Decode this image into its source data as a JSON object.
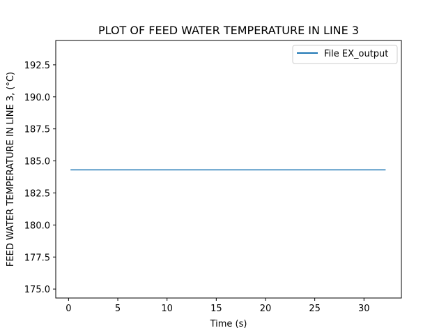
{
  "chart_data": {
    "type": "line",
    "title": "PLOT OF FEED WATER TEMPERATURE IN LINE 3",
    "xlabel": "Time (s)",
    "ylabel": "FEED WATER TEMPERATURE IN LINE 3, (°C)",
    "xlim": [
      -1.3,
      33.8
    ],
    "ylim": [
      174.3,
      194.4
    ],
    "xticks": [
      0,
      5,
      10,
      15,
      20,
      25,
      30
    ],
    "yticks": [
      175.0,
      177.5,
      180.0,
      182.5,
      185.0,
      187.5,
      190.0,
      192.5
    ],
    "xtick_labels": [
      "0",
      "5",
      "10",
      "15",
      "20",
      "25",
      "30"
    ],
    "ytick_labels": [
      "175.0",
      "177.5",
      "180.0",
      "182.5",
      "185.0",
      "187.5",
      "190.0",
      "192.5"
    ],
    "grid": false,
    "legend_position": "top-right",
    "series": [
      {
        "name": "File EX_output",
        "color": "#1f77b4",
        "x": [
          0.2,
          32.2
        ],
        "y": [
          184.3,
          184.3
        ]
      }
    ]
  }
}
